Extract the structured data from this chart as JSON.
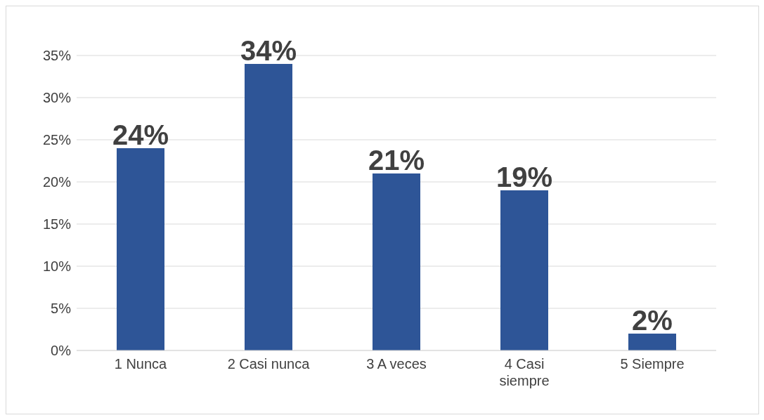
{
  "chart_data": {
    "type": "bar",
    "categories": [
      "1 Nunca",
      "2 Casi nunca",
      "3 A veces",
      "4 Casi siempre",
      "5 Siempre"
    ],
    "values": [
      24,
      34,
      21,
      19,
      2
    ],
    "value_labels": [
      "24%",
      "34%",
      "21%",
      "19%",
      "2%"
    ],
    "color": "#2e5597",
    "ylim": [
      0,
      35
    ],
    "yticks": [
      {
        "value": 0,
        "label": "0%"
      },
      {
        "value": 5,
        "label": "5%"
      },
      {
        "value": 10,
        "label": "10%"
      },
      {
        "value": 15,
        "label": "15%"
      },
      {
        "value": 20,
        "label": "20%"
      },
      {
        "value": 25,
        "label": "25%"
      },
      {
        "value": 30,
        "label": "30%"
      },
      {
        "value": 35,
        "label": "35%"
      }
    ],
    "grid": "y"
  }
}
